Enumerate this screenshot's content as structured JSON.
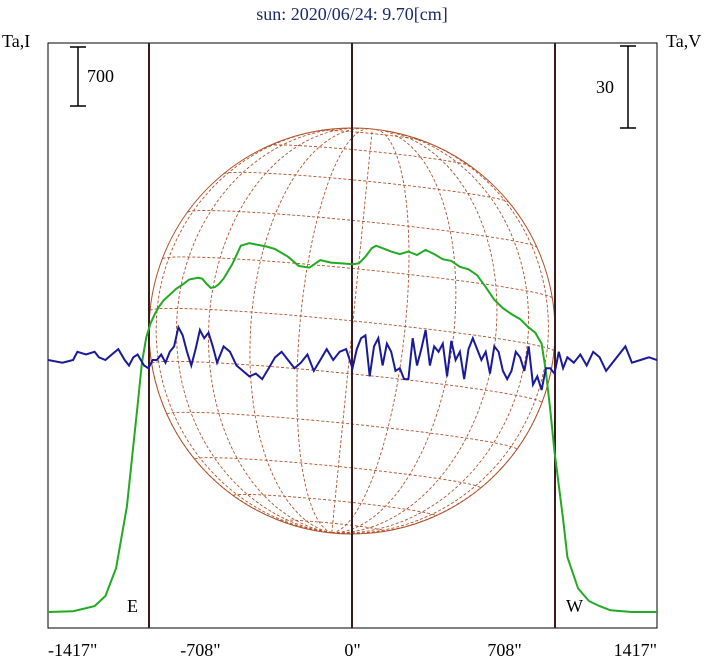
{
  "title": "sun: 2020/06/24: 9.70[cm]",
  "left_axis_label": "Ta,I",
  "right_axis_label": "Ta,V",
  "left_scale_label": "700",
  "right_scale_label": "30",
  "east_label": "E",
  "west_label": "W",
  "x_ticks": [
    "-1417\"",
    "-708\"",
    "0\"",
    "708\"",
    "1417\""
  ],
  "colors": {
    "intensity": "#22aa22",
    "polarization": "#1a1a99",
    "disk": "#b0522a",
    "limb_lines": "#3a1a1a",
    "frame": "#000000",
    "title": "#1a2a6a"
  },
  "chart_data": {
    "type": "line",
    "title": "sun: 2020/06/24: 9.70[cm]",
    "xlabel": "",
    "ylabel": "Ta,I",
    "ylabel_right": "Ta,V",
    "x_unit": "arcsec",
    "xlim": [
      -1417,
      1417
    ],
    "x_ticks": [
      -1417,
      -708,
      0,
      708,
      1417
    ],
    "limb_x": [
      -944,
      944
    ],
    "scale_bars": {
      "I": 700,
      "V": 30
    },
    "series": [
      {
        "name": "Ta,I",
        "x": [
          -1417,
          -1300,
          -1200,
          -1150,
          -1100,
          -1050,
          -1000,
          -980,
          -960,
          -940,
          -920,
          -900,
          -880,
          -850,
          -820,
          -790,
          -760,
          -720,
          -700,
          -680,
          -660,
          -640,
          -620,
          -600,
          -560,
          -520,
          -480,
          -440,
          -400,
          -360,
          -300,
          -250,
          -200,
          -150,
          -100,
          -50,
          0,
          30,
          60,
          90,
          110,
          140,
          180,
          220,
          260,
          300,
          340,
          380,
          420,
          460,
          500,
          540,
          580,
          620,
          660,
          700,
          740,
          780,
          820,
          850,
          880,
          900,
          920,
          940,
          960,
          980,
          1000,
          1050,
          1100,
          1150,
          1200,
          1300,
          1417
        ],
        "y": [
          0,
          10,
          70,
          190,
          520,
          1250,
          2450,
          2950,
          3250,
          3420,
          3530,
          3620,
          3690,
          3760,
          3830,
          3880,
          3940,
          3960,
          3950,
          3890,
          3840,
          3850,
          3890,
          3950,
          4120,
          4340,
          4370,
          4350,
          4330,
          4300,
          4210,
          4100,
          4080,
          4170,
          4140,
          4130,
          4120,
          4130,
          4210,
          4310,
          4340,
          4310,
          4270,
          4240,
          4270,
          4230,
          4290,
          4240,
          4180,
          4160,
          4090,
          4060,
          3990,
          3850,
          3700,
          3600,
          3530,
          3470,
          3370,
          3310,
          3180,
          2850,
          2400,
          1900,
          1500,
          1100,
          650,
          280,
          130,
          70,
          20,
          0,
          0
        ]
      },
      {
        "name": "Ta,V",
        "x": [
          -1417,
          -1350,
          -1300,
          -1280,
          -1240,
          -1200,
          -1180,
          -1150,
          -1120,
          -1090,
          -1060,
          -1040,
          -1020,
          -1000,
          -985,
          -970,
          -950,
          -930,
          -910,
          -890,
          -870,
          -850,
          -830,
          -810,
          -790,
          -770,
          -750,
          -730,
          -710,
          -690,
          -670,
          -650,
          -630,
          -600,
          -570,
          -540,
          -510,
          -480,
          -450,
          -420,
          -390,
          -360,
          -330,
          -300,
          -270,
          -240,
          -210,
          -180,
          -150,
          -120,
          -90,
          -60,
          -30,
          0,
          20,
          40,
          60,
          80,
          100,
          120,
          140,
          160,
          180,
          200,
          220,
          240,
          260,
          280,
          300,
          320,
          340,
          360,
          380,
          400,
          420,
          440,
          460,
          480,
          500,
          520,
          540,
          560,
          580,
          600,
          620,
          640,
          660,
          680,
          700,
          720,
          740,
          760,
          780,
          800,
          820,
          840,
          860,
          880,
          900,
          920,
          940,
          960,
          980,
          1000,
          1030,
          1060,
          1090,
          1120,
          1150,
          1180,
          1210,
          1240,
          1270,
          1300,
          1340,
          1380,
          1417
        ],
        "y": [
          0,
          -1,
          0,
          3,
          2,
          3,
          1,
          0,
          2,
          4,
          0,
          -2,
          1,
          2,
          0,
          -2,
          -3,
          0,
          0,
          2,
          -1,
          3,
          5,
          12,
          9,
          3,
          -2,
          4,
          11,
          8,
          10,
          5,
          -1,
          5,
          3,
          -2,
          -4,
          -6,
          -5,
          -7,
          -3,
          1,
          3,
          0,
          -3,
          -1,
          2,
          -4,
          0,
          4,
          0,
          3,
          4,
          -3,
          4,
          8,
          9,
          -6,
          5,
          8,
          -2,
          6,
          3,
          -4,
          -3,
          -7,
          -7,
          8,
          -2,
          4,
          11,
          -2,
          5,
          3,
          6,
          -6,
          7,
          0,
          3,
          -7,
          4,
          8,
          4,
          0,
          3,
          -5,
          5,
          3,
          -4,
          -7,
          -4,
          3,
          1,
          -4,
          5,
          -9,
          -6,
          -11,
          -3,
          -3,
          -5,
          3,
          -3,
          1,
          -1,
          2,
          -2,
          3,
          1,
          -4,
          -1,
          2,
          5,
          -1,
          0,
          1,
          0
        ]
      }
    ]
  }
}
